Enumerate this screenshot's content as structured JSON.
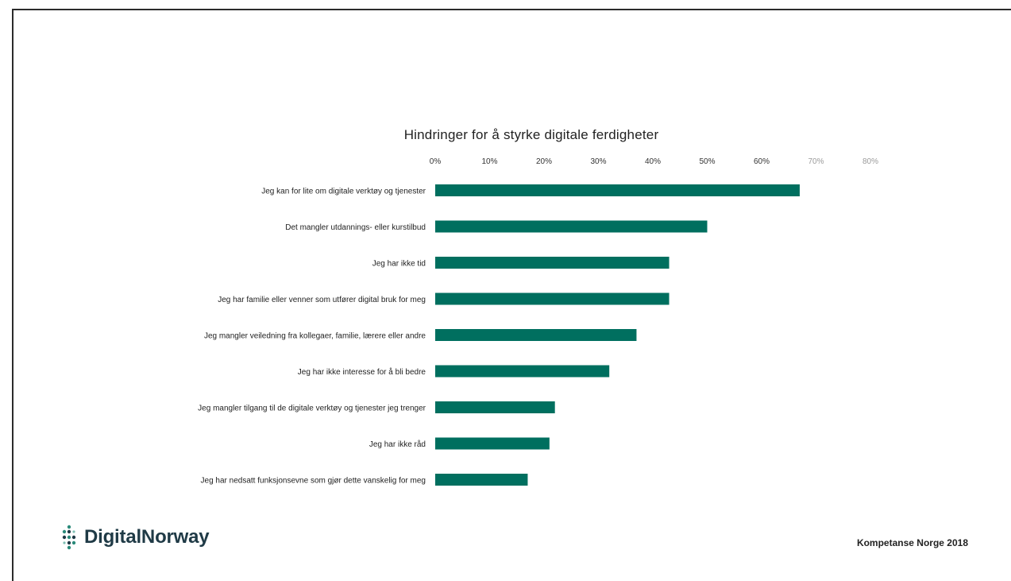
{
  "chart_data": {
    "type": "bar",
    "orientation": "horizontal",
    "title": "Hindringer for å styrke digitale ferdigheter",
    "categories": [
      "Jeg kan for lite om digitale verktøy og tjenester",
      "Det mangler utdannings- eller kurstilbud",
      "Jeg har ikke tid",
      "Jeg har familie eller venner som utfører digital bruk for meg",
      "Jeg mangler veiledning fra kollegaer, familie, lærere eller andre",
      "Jeg har ikke interesse for å bli bedre",
      "Jeg mangler tilgang til de digitale verktøy og tjenester jeg trenger",
      "Jeg har ikke råd",
      "Jeg har nedsatt funksjonsevne som gjør dette vanskelig for meg"
    ],
    "values": [
      67,
      50,
      43,
      43,
      37,
      32,
      22,
      21,
      17
    ],
    "xlim": [
      0,
      80
    ],
    "ticks": [
      "0%",
      "10%",
      "20%",
      "30%",
      "40%",
      "50%",
      "60%",
      "70%",
      "80%"
    ],
    "axis_position": "top",
    "grid": false,
    "legend": "none",
    "bar_color": "#006f5f"
  },
  "branding": {
    "logo_text": "DigitalNorway",
    "source": "Kompetanse Norge 2018"
  },
  "colors": {
    "bar": "#006f5f",
    "logo_text": "#1f3a46",
    "logo_dots": "#2a8a7a"
  },
  "icons": {
    "logo": "digitalnorway-dot-logo"
  }
}
